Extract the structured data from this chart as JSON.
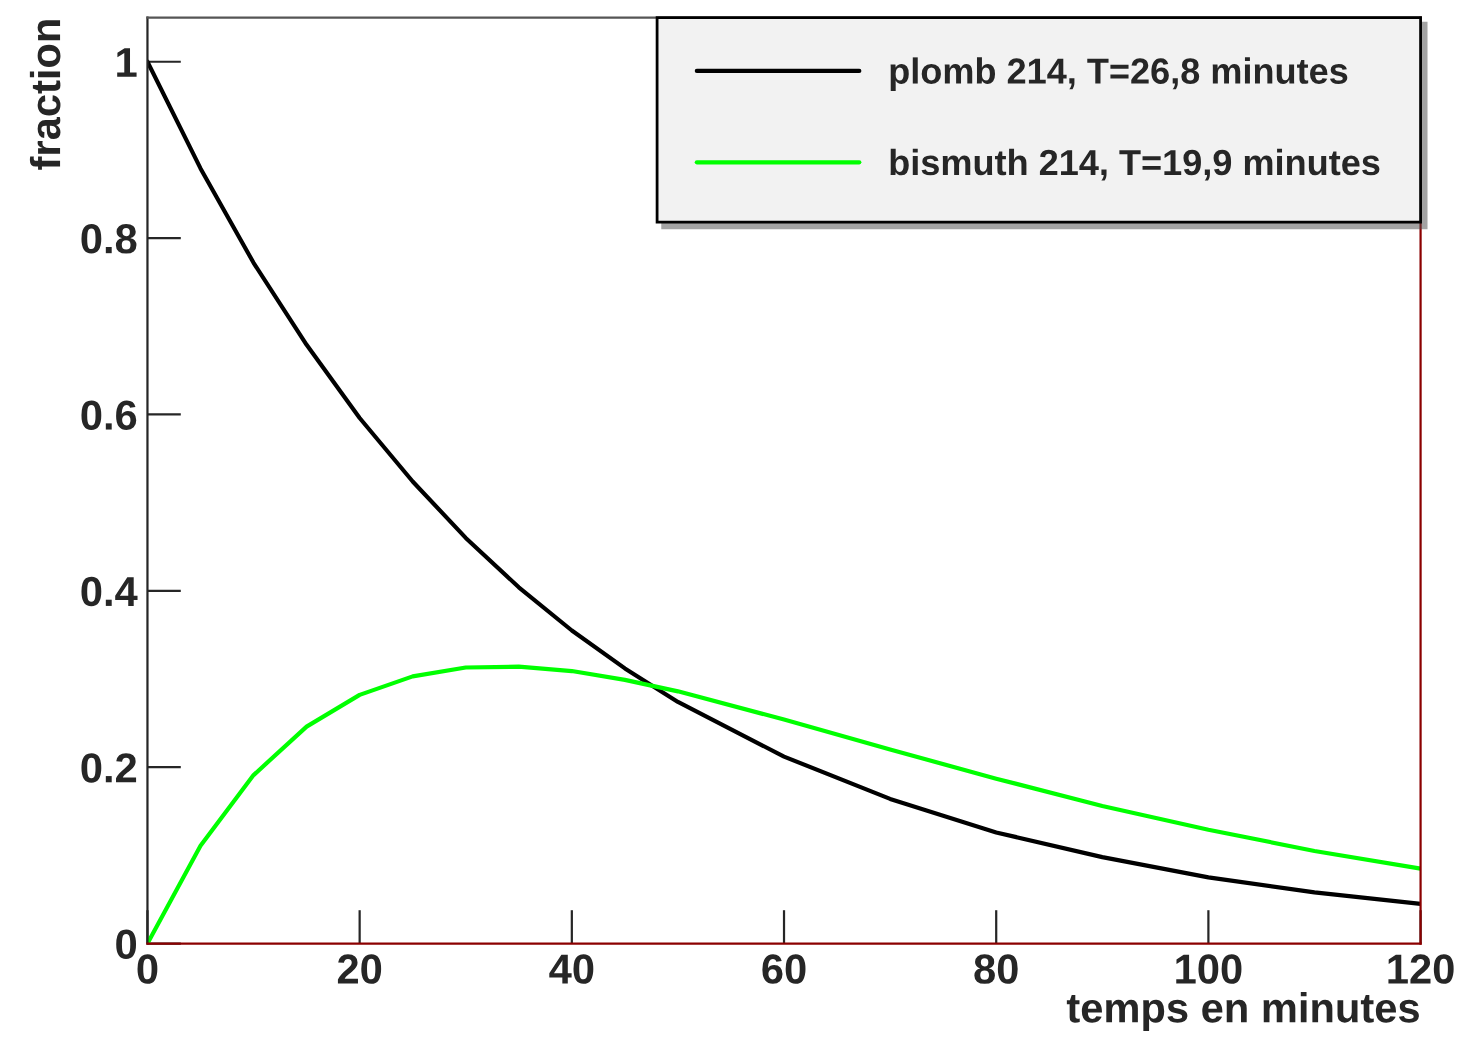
{
  "chart_data": {
    "type": "line",
    "xlabel": "temps en minutes",
    "ylabel": "fraction",
    "x": [
      0,
      5,
      10,
      15,
      20,
      25,
      30,
      35,
      40,
      45,
      50,
      60,
      70,
      80,
      90,
      100,
      110,
      120
    ],
    "series": [
      {
        "name": "plomb 214, T=26,8 minutes",
        "color": "#000000",
        "values": [
          1.0,
          0.879,
          0.772,
          0.679,
          0.596,
          0.524,
          0.46,
          0.404,
          0.355,
          0.312,
          0.274,
          0.212,
          0.164,
          0.126,
          0.098,
          0.075,
          0.058,
          0.045
        ]
      },
      {
        "name": "bismuth 214, T=19,9 minutes",
        "color": "#00ff00",
        "values": [
          0.0,
          0.111,
          0.191,
          0.246,
          0.282,
          0.303,
          0.313,
          0.314,
          0.309,
          0.299,
          0.286,
          0.254,
          0.22,
          0.187,
          0.156,
          0.129,
          0.105,
          0.085
        ]
      }
    ],
    "xlim": [
      0,
      120
    ],
    "xticks": [
      0,
      20,
      40,
      60,
      80,
      100,
      120
    ],
    "ylim": [
      0,
      1.05
    ],
    "yticks": [
      0,
      0.2,
      0.4,
      0.6,
      0.8,
      1
    ],
    "legend": "top right",
    "grid": false
  }
}
